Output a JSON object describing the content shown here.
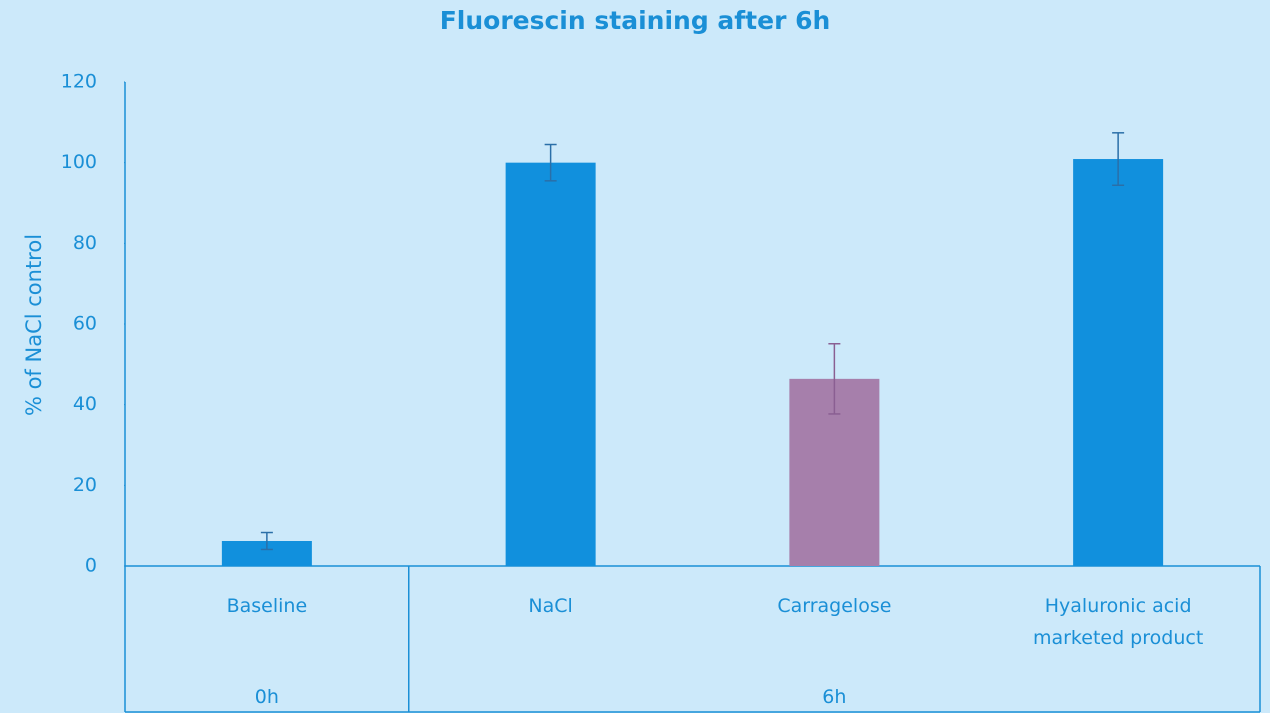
{
  "chart_data": {
    "type": "bar",
    "title": "Fluorescin staining after 6h",
    "y_label": "% of NaCl control",
    "ylim": [
      0,
      120
    ],
    "yticks": [
      0,
      20,
      40,
      60,
      80,
      100,
      120
    ],
    "groups": [
      {
        "label": "0h",
        "categories": [
          "Baseline"
        ],
        "values": [
          6.2
        ],
        "errors": [
          2.1
        ],
        "colors": [
          "#1190dd"
        ]
      },
      {
        "label": "6h",
        "categories": [
          "NaCl",
          "Carragelose",
          "Hyaluronic acid marketed product"
        ],
        "values": [
          100,
          46.4,
          100.9
        ],
        "errors": [
          4.5,
          8.7,
          6.5
        ],
        "colors": [
          "#1190dd",
          "#a67fab",
          "#1190dd"
        ]
      }
    ]
  }
}
